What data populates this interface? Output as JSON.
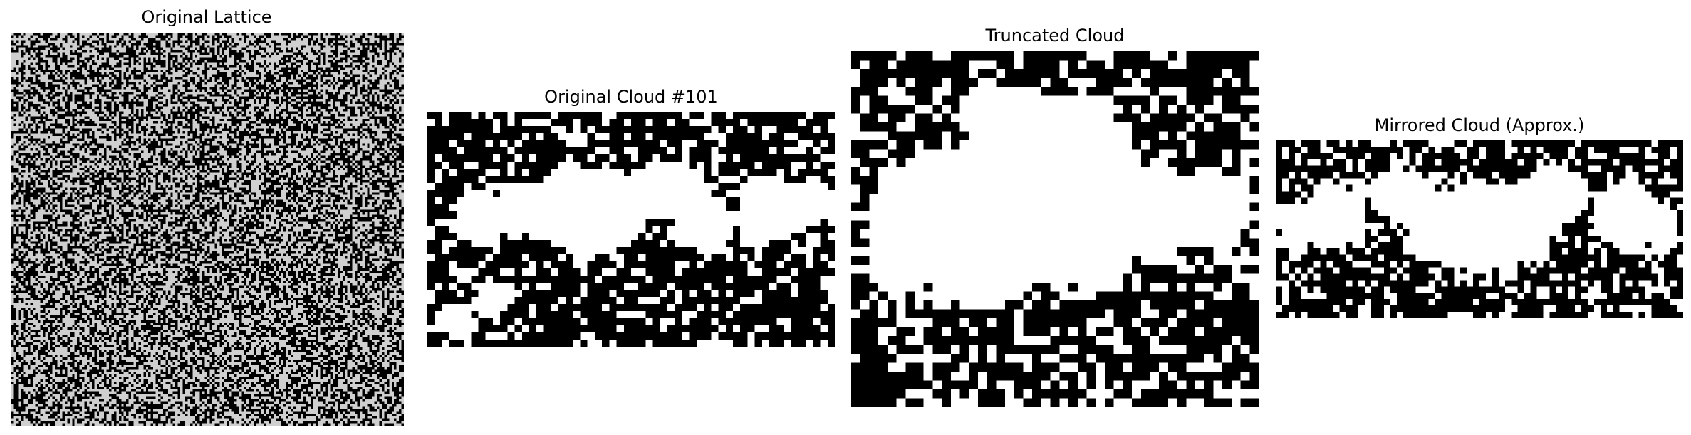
{
  "panels": [
    {
      "id": "original-lattice",
      "title": "Original Lattice",
      "kind": "noise",
      "grid": [
        160,
        160
      ]
    },
    {
      "id": "original-cloud",
      "title": "Original Cloud #101",
      "kind": "blob",
      "grid": [
        56,
        33
      ],
      "variant": "original"
    },
    {
      "id": "truncated-cloud",
      "title": "Truncated Cloud",
      "kind": "blob",
      "grid": [
        45,
        40
      ],
      "variant": "truncated"
    },
    {
      "id": "mirrored-cloud",
      "title": "Mirrored Cloud (Approx.)",
      "kind": "blob",
      "grid": [
        64,
        28
      ],
      "variant": "mirrored"
    }
  ],
  "colors": {
    "background": "#000000",
    "foreground": "#ffffff"
  }
}
